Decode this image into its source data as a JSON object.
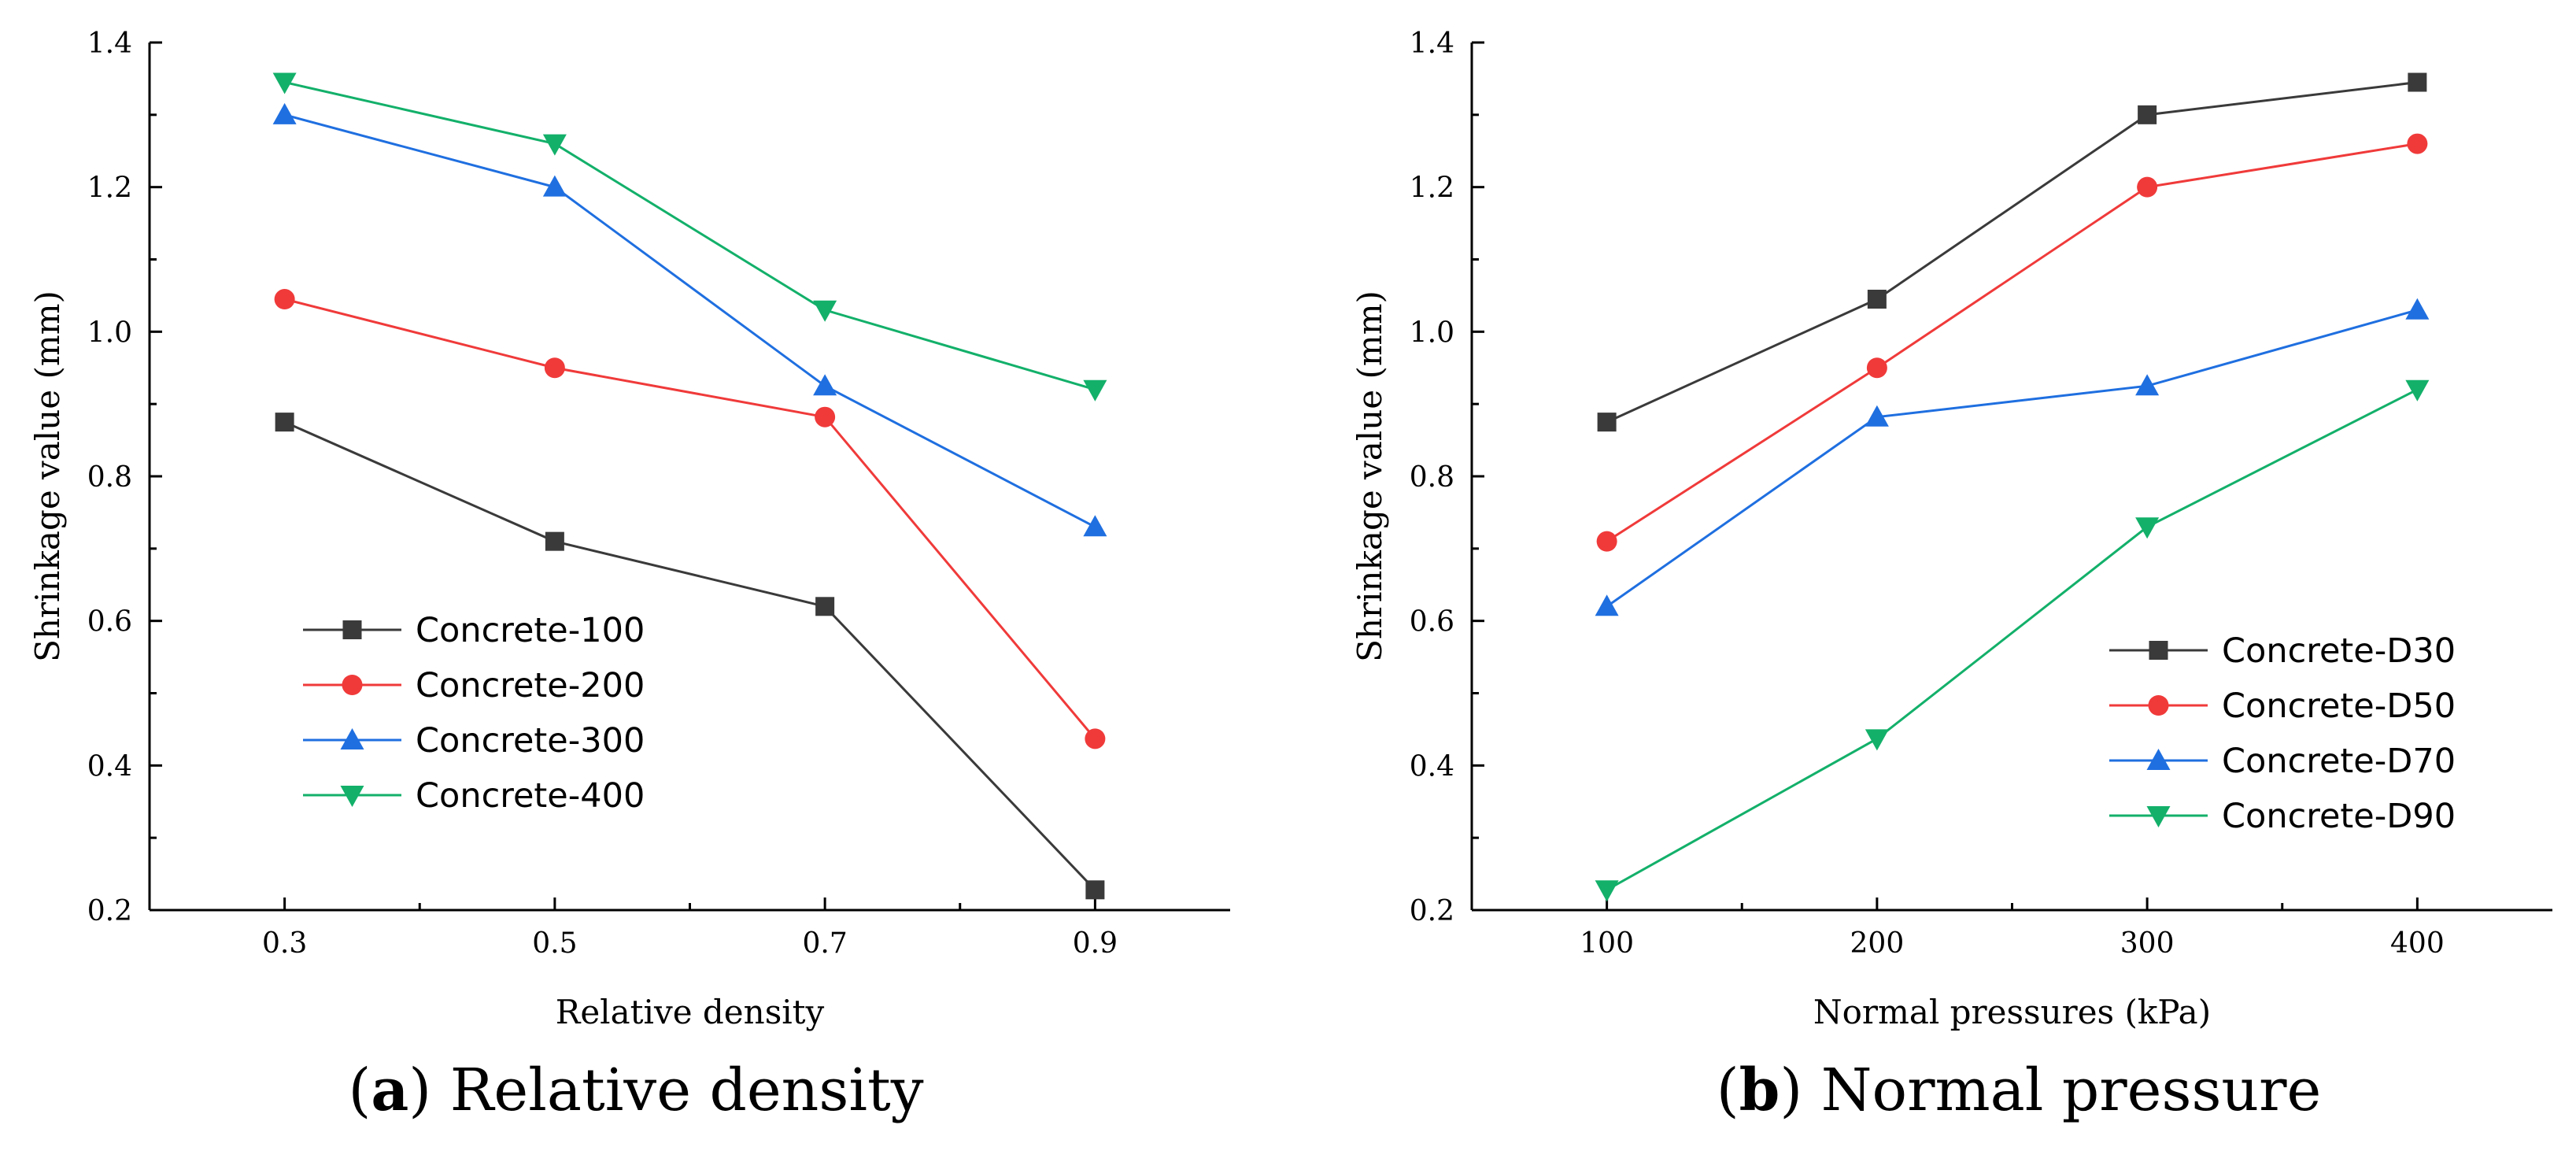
{
  "chart_data": [
    {
      "type": "line",
      "caption": {
        "letter": "a",
        "text": "Relative density"
      },
      "xlabel": "Relative density",
      "ylabel": "Shrinkage value (mm)",
      "x": [
        0.3,
        0.5,
        0.7,
        0.9
      ],
      "x_tick_labels": [
        "0.3",
        "0.5",
        "0.7",
        "0.9"
      ],
      "xlim": [
        0.2,
        1.0
      ],
      "ylim": [
        0.2,
        1.4
      ],
      "y_ticks": [
        0.2,
        0.4,
        0.6,
        0.8,
        1.0,
        1.2,
        1.4
      ],
      "y_tick_labels": [
        "0.2",
        "0.4",
        "0.6",
        "0.8",
        "1.0",
        "1.2",
        "1.4"
      ],
      "grid": false,
      "legend_position": "lower-left",
      "series": [
        {
          "name": "Concrete-100",
          "color": "#3a3a3a",
          "marker": "square",
          "values": [
            0.875,
            0.71,
            0.62,
            0.228
          ]
        },
        {
          "name": "Concrete-200",
          "color": "#f03a3a",
          "marker": "circle",
          "values": [
            1.045,
            0.95,
            0.882,
            0.437
          ]
        },
        {
          "name": "Concrete-300",
          "color": "#1f6fe0",
          "marker": "triangle-up",
          "values": [
            1.3,
            1.2,
            0.925,
            0.73
          ]
        },
        {
          "name": "Concrete-400",
          "color": "#13b06a",
          "marker": "triangle-down",
          "values": [
            1.345,
            1.26,
            1.03,
            0.92
          ]
        }
      ]
    },
    {
      "type": "line",
      "caption": {
        "letter": "b",
        "text": "Normal pressure"
      },
      "xlabel": "Normal pressures (kPa)",
      "ylabel": "Shrinkage value (mm)",
      "x": [
        100,
        200,
        300,
        400
      ],
      "x_tick_labels": [
        "100",
        "200",
        "300",
        "400"
      ],
      "xlim": [
        50,
        450
      ],
      "ylim": [
        0.2,
        1.4
      ],
      "y_ticks": [
        0.2,
        0.4,
        0.6,
        0.8,
        1.0,
        1.2,
        1.4
      ],
      "y_tick_labels": [
        "0.2",
        "0.4",
        "0.6",
        "0.8",
        "1.0",
        "1.2",
        "1.4"
      ],
      "grid": false,
      "legend_position": "lower-right",
      "series": [
        {
          "name": "Concrete-D30",
          "color": "#3a3a3a",
          "marker": "square",
          "values": [
            0.875,
            1.045,
            1.3,
            1.345
          ]
        },
        {
          "name": "Concrete-D50",
          "color": "#f03a3a",
          "marker": "circle",
          "values": [
            0.71,
            0.95,
            1.2,
            1.26
          ]
        },
        {
          "name": "Concrete-D70",
          "color": "#1f6fe0",
          "marker": "triangle-up",
          "values": [
            0.62,
            0.882,
            0.925,
            1.03
          ]
        },
        {
          "name": "Concrete-D90",
          "color": "#13b06a",
          "marker": "triangle-down",
          "values": [
            0.228,
            0.437,
            0.73,
            0.92
          ]
        }
      ]
    }
  ]
}
